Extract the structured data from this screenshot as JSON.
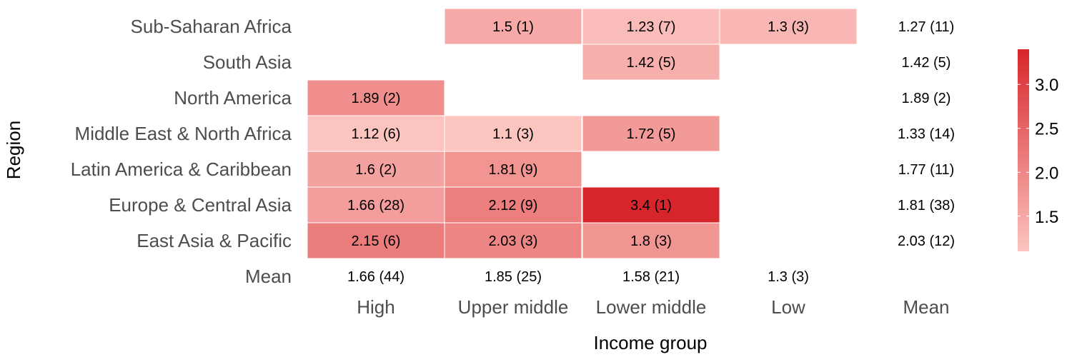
{
  "chart_data": {
    "type": "heatmap",
    "xlabel": "Income group",
    "ylabel": "Region",
    "x_categories": [
      "High",
      "Upper middle",
      "Lower middle",
      "Low",
      "Mean"
    ],
    "y_categories": [
      "Sub-Saharan Africa",
      "South Asia",
      "North America",
      "Middle East & North Africa",
      "Latin America & Caribbean",
      "Europe & Central Asia",
      "East Asia & Pacific",
      "Mean"
    ],
    "cells": [
      {
        "region": "Sub-Saharan Africa",
        "income": "Upper middle",
        "value": 1.5,
        "label": "1.5 (1)"
      },
      {
        "region": "Sub-Saharan Africa",
        "income": "Lower middle",
        "value": 1.23,
        "label": "1.23 (7)"
      },
      {
        "region": "Sub-Saharan Africa",
        "income": "Low",
        "value": 1.3,
        "label": "1.3 (3)"
      },
      {
        "region": "South Asia",
        "income": "Lower middle",
        "value": 1.42,
        "label": "1.42 (5)"
      },
      {
        "region": "North America",
        "income": "High",
        "value": 1.89,
        "label": "1.89 (2)"
      },
      {
        "region": "Middle East & North Africa",
        "income": "High",
        "value": 1.12,
        "label": "1.12 (6)"
      },
      {
        "region": "Middle East & North Africa",
        "income": "Upper middle",
        "value": 1.1,
        "label": "1.1 (3)"
      },
      {
        "region": "Middle East & North Africa",
        "income": "Lower middle",
        "value": 1.72,
        "label": "1.72 (5)"
      },
      {
        "region": "Latin America & Caribbean",
        "income": "High",
        "value": 1.6,
        "label": "1.6 (2)"
      },
      {
        "region": "Latin America & Caribbean",
        "income": "Upper middle",
        "value": 1.81,
        "label": "1.81 (9)"
      },
      {
        "region": "Europe & Central Asia",
        "income": "High",
        "value": 1.66,
        "label": "1.66 (28)"
      },
      {
        "region": "Europe & Central Asia",
        "income": "Upper middle",
        "value": 2.12,
        "label": "2.12 (9)"
      },
      {
        "region": "Europe & Central Asia",
        "income": "Lower middle",
        "value": 3.4,
        "label": "3.4 (1)"
      },
      {
        "region": "East Asia & Pacific",
        "income": "High",
        "value": 2.15,
        "label": "2.15 (6)"
      },
      {
        "region": "East Asia & Pacific",
        "income": "Upper middle",
        "value": 2.03,
        "label": "2.03 (3)"
      },
      {
        "region": "East Asia & Pacific",
        "income": "Lower middle",
        "value": 1.8,
        "label": "1.8 (3)"
      }
    ],
    "row_means": [
      {
        "region": "Sub-Saharan Africa",
        "label": "1.27 (11)"
      },
      {
        "region": "South Asia",
        "label": "1.42 (5)"
      },
      {
        "region": "North America",
        "label": "1.89 (2)"
      },
      {
        "region": "Middle East & North Africa",
        "label": "1.33 (14)"
      },
      {
        "region": "Latin America & Caribbean",
        "label": "1.77 (11)"
      },
      {
        "region": "Europe & Central Asia",
        "label": "1.81 (38)"
      },
      {
        "region": "East Asia & Pacific",
        "label": "2.03 (12)"
      }
    ],
    "column_means": [
      {
        "income": "High",
        "label": "1.66 (44)"
      },
      {
        "income": "Upper middle",
        "label": "1.85 (25)"
      },
      {
        "income": "Lower middle",
        "label": "1.58 (21)"
      },
      {
        "income": "Low",
        "label": "1.3 (3)"
      }
    ],
    "legend": {
      "position": "right",
      "ticks": [
        "1.5",
        "2.0",
        "2.5",
        "3.0"
      ],
      "tick_values": [
        1.5,
        2.0,
        2.5,
        3.0
      ],
      "min": 1.1,
      "max": 3.4,
      "low_color": "#fcc5c0",
      "high_color": "#d7262b"
    },
    "grid": false
  }
}
